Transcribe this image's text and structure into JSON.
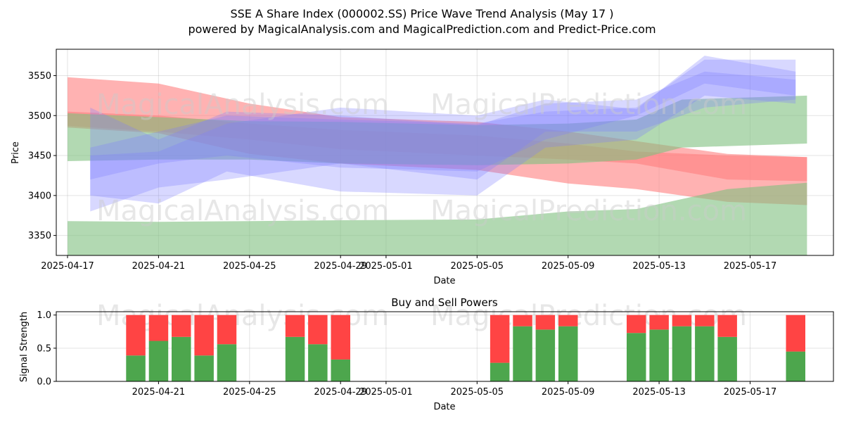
{
  "figure": {
    "title_line1": "SSE A Share Index (000002.SS) Price Wave Trend Analysis (May 17 )",
    "title_line2": "powered by MagicalAnalysis.com and MagicalPrediction.com and Predict-Price.com",
    "watermarks": [
      "MagicalAnalysis.com",
      "MagicalPrediction.com"
    ]
  },
  "colors": {
    "buy": "#4da64d",
    "sell": "#ff4444",
    "band_red": "#ff7f7f",
    "band_green": "#7fbf7f",
    "band_blue": "#7f7fff"
  },
  "chart_data": [
    {
      "type": "area",
      "title": "",
      "xlabel": "Date",
      "ylabel": "Price",
      "xlim": [
        "2025-04-17",
        "2025-05-21"
      ],
      "ylim": [
        3325,
        3583
      ],
      "grid": true,
      "xticks": [
        "2025-04-17",
        "2025-04-21",
        "2025-04-25",
        "2025-04-29",
        "2025-05-01",
        "2025-05-05",
        "2025-05-09",
        "2025-05-13",
        "2025-05-17"
      ],
      "yticks": [
        3350,
        3400,
        3450,
        3500,
        3550
      ],
      "bands": [
        {
          "color": "red",
          "x": [
            "2025-04-17",
            "2025-04-21",
            "2025-04-25",
            "2025-04-29",
            "2025-05-05",
            "2025-05-09",
            "2025-05-12",
            "2025-05-16",
            "2025-05-19.5"
          ],
          "upper": [
            3548,
            3540,
            3515,
            3498,
            3492,
            3480,
            3468,
            3452,
            3448
          ],
          "lower": [
            3487,
            3480,
            3470,
            3458,
            3450,
            3445,
            3440,
            3420,
            3418
          ]
        },
        {
          "color": "red",
          "x": [
            "2025-04-17",
            "2025-04-21",
            "2025-04-25",
            "2025-04-29",
            "2025-05-05",
            "2025-05-09",
            "2025-05-12",
            "2025-05-16",
            "2025-05-19.5"
          ],
          "upper": [
            3505,
            3500,
            3490,
            3482,
            3475,
            3465,
            3455,
            3450,
            3448
          ],
          "lower": [
            3485,
            3478,
            3452,
            3440,
            3432,
            3415,
            3408,
            3392,
            3388
          ]
        },
        {
          "color": "green",
          "x": [
            "2025-04-17",
            "2025-04-21",
            "2025-04-25",
            "2025-04-29",
            "2025-05-05",
            "2025-05-09",
            "2025-05-12",
            "2025-05-14",
            "2025-05-19.5"
          ],
          "upper": [
            3503,
            3498,
            3493,
            3492,
            3488,
            3490,
            3495,
            3520,
            3525
          ],
          "lower": [
            3443,
            3445,
            3445,
            3440,
            3438,
            3440,
            3445,
            3460,
            3465
          ]
        },
        {
          "color": "green",
          "x": [
            "2025-04-17",
            "2025-04-21",
            "2025-04-25",
            "2025-04-29",
            "2025-05-05",
            "2025-05-09",
            "2025-05-12",
            "2025-05-16",
            "2025-05-19.5"
          ],
          "upper": [
            3368,
            3367,
            3368,
            3369,
            3370,
            3380,
            3383,
            3408,
            3416
          ]
        },
        {
          "color": "blue",
          "x": [
            "2025-04-18",
            "2025-04-21",
            "2025-04-24",
            "2025-04-29",
            "2025-05-05",
            "2025-05-08",
            "2025-05-12",
            "2025-05-15",
            "2025-05-19"
          ],
          "upper": [
            3510,
            3470,
            3505,
            3500,
            3488,
            3515,
            3520,
            3555,
            3545
          ],
          "lower": [
            3420,
            3440,
            3450,
            3435,
            3430,
            3470,
            3500,
            3540,
            3525
          ]
        },
        {
          "color": "blue",
          "x": [
            "2025-04-18",
            "2025-04-21",
            "2025-04-24",
            "2025-04-29",
            "2025-05-05",
            "2025-05-08",
            "2025-05-12",
            "2025-05-15",
            "2025-05-19"
          ],
          "upper": [
            3460,
            3480,
            3500,
            3495,
            3490,
            3505,
            3510,
            3570,
            3570
          ],
          "lower": [
            3400,
            3390,
            3430,
            3405,
            3400,
            3460,
            3470,
            3525,
            3515
          ]
        },
        {
          "color": "blue",
          "x": [
            "2025-04-18",
            "2025-04-21",
            "2025-04-24",
            "2025-04-29",
            "2025-05-05",
            "2025-05-08",
            "2025-05-12",
            "2025-05-15",
            "2025-05-19"
          ],
          "upper": [
            3450,
            3455,
            3490,
            3510,
            3500,
            3520,
            3508,
            3575,
            3555
          ],
          "lower": [
            3380,
            3410,
            3420,
            3440,
            3420,
            3480,
            3480,
            3510,
            3520
          ]
        }
      ],
      "watermark": true
    },
    {
      "type": "bar",
      "title": "Buy and Sell Powers",
      "xlabel": "Date",
      "ylabel": "Signal Strength",
      "ylim": [
        0,
        1.05
      ],
      "yticks": [
        "0.0",
        "0.5",
        "1.0"
      ],
      "xticks": [
        "2025-04-21",
        "2025-04-25",
        "2025-04-29",
        "2025-05-01",
        "2025-05-05",
        "2025-05-09",
        "2025-05-13",
        "2025-05-17"
      ],
      "categories": [
        "2025-04-20",
        "2025-04-21",
        "2025-04-22",
        "2025-04-23",
        "2025-04-24",
        "2025-04-27",
        "2025-04-28",
        "2025-04-29",
        "2025-05-06",
        "2025-05-07",
        "2025-05-08",
        "2025-05-09",
        "2025-05-12",
        "2025-05-13",
        "2025-05-14",
        "2025-05-15",
        "2025-05-16",
        "2025-05-19"
      ],
      "series": [
        {
          "name": "Buy",
          "values": [
            0.39,
            0.61,
            0.67,
            0.39,
            0.56,
            0.67,
            0.56,
            0.33,
            0.28,
            0.83,
            0.78,
            0.83,
            0.73,
            0.78,
            0.83,
            0.83,
            0.67,
            0.45
          ]
        },
        {
          "name": "Sell",
          "values": [
            0.61,
            0.39,
            0.33,
            0.61,
            0.44,
            0.33,
            0.44,
            0.67,
            0.72,
            0.17,
            0.22,
            0.17,
            0.27,
            0.22,
            0.17,
            0.17,
            0.33,
            0.55
          ]
        }
      ]
    }
  ]
}
